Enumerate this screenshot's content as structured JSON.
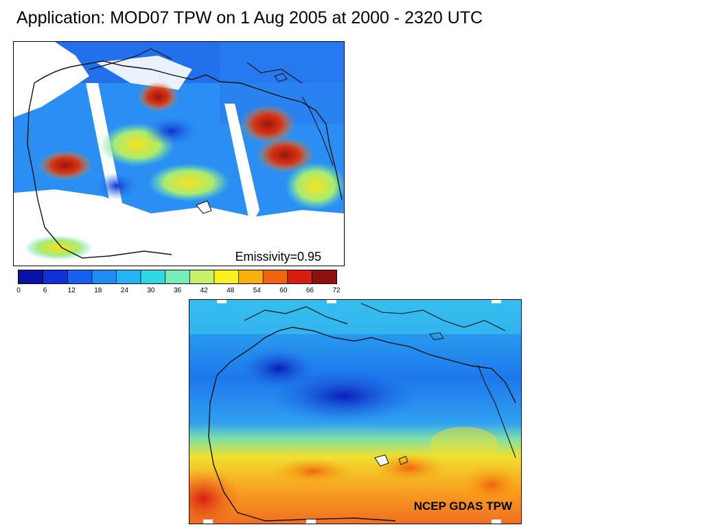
{
  "title": "Application: MOD07 TPW on 1 Aug 2005 at 2000 - 2320 UTC",
  "modis_map": {
    "label": "Emissivity=0.95"
  },
  "ncep_map": {
    "label": "NCEP GDAS TPW"
  },
  "colorbar": {
    "tick_labels": [
      "0",
      "6",
      "12",
      "18",
      "24",
      "30",
      "36",
      "42",
      "48",
      "54",
      "60",
      "66",
      "72"
    ],
    "colors": [
      "#0a10a8",
      "#1030d8",
      "#1460f0",
      "#1e8cf4",
      "#24b4f4",
      "#30d8e4",
      "#78ecb8",
      "#c8f068",
      "#f8f020",
      "#f8b010",
      "#f06410",
      "#d81c10",
      "#901010"
    ]
  },
  "colors": {
    "water_blue": "#1a5ae6",
    "dry_blue": "#2a7ef0",
    "moist_red": "#b01a10"
  }
}
